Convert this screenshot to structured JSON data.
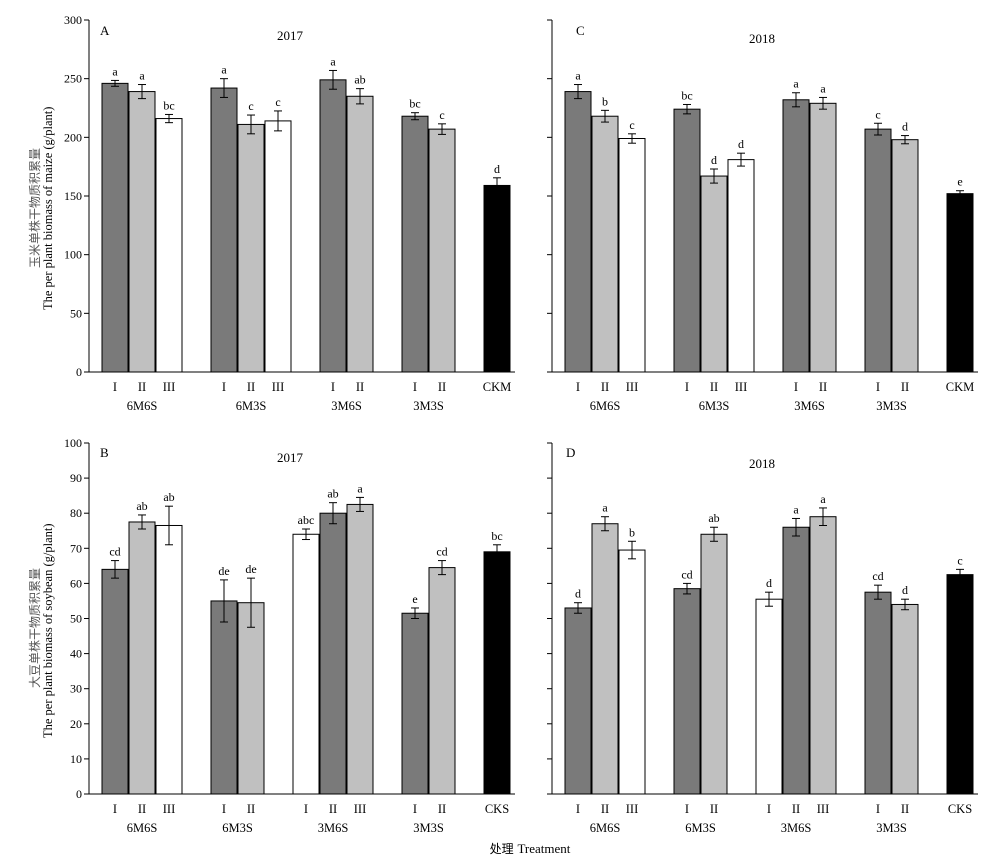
{
  "colors": {
    "I": "#7a7a7a",
    "II": "#c0c0c0",
    "III": "#ffffff",
    "CK": "#000000",
    "edge": "#000000"
  },
  "xaxis_title": {
    "cn": "处理",
    "en": "Treatment"
  },
  "ylabels": {
    "maize": {
      "cn": "玉米单株干物质积累量",
      "en": "The per plant biomass of maize (g/plant)"
    },
    "soybean": {
      "cn": "大豆单株干物质积累量",
      "en": "The per plant biomass of soybean (g/plant)"
    }
  },
  "chart_data": [
    {
      "panel": "A",
      "title": "2017",
      "type": "bar",
      "ylim": [
        0,
        300
      ],
      "yticks": [
        0,
        50,
        100,
        150,
        200,
        250,
        300
      ],
      "groups": [
        {
          "name": "6M6S",
          "bars": [
            {
              "cls": "I",
              "tick": "I",
              "value": 246,
              "err": 2.5,
              "letter": "a"
            },
            {
              "cls": "II",
              "tick": "II",
              "value": 239,
              "err": 6,
              "letter": "a"
            },
            {
              "cls": "III",
              "tick": "III",
              "value": 216,
              "err": 3.5,
              "letter": "bc"
            }
          ]
        },
        {
          "name": "6M3S",
          "bars": [
            {
              "cls": "I",
              "tick": "I",
              "value": 242,
              "err": 8,
              "letter": "a"
            },
            {
              "cls": "II",
              "tick": "II",
              "value": 211,
              "err": 8,
              "letter": "c"
            },
            {
              "cls": "III",
              "tick": "III",
              "value": 214,
              "err": 8.5,
              "letter": "c"
            }
          ]
        },
        {
          "name": "3M6S",
          "bars": [
            {
              "cls": "I",
              "tick": "I",
              "value": 249,
              "err": 8,
              "letter": "a"
            },
            {
              "cls": "II",
              "tick": "II",
              "value": 235,
              "err": 6.5,
              "letter": "ab"
            }
          ]
        },
        {
          "name": "3M3S",
          "bars": [
            {
              "cls": "I",
              "tick": "I",
              "value": 218,
              "err": 3,
              "letter": "bc"
            },
            {
              "cls": "II",
              "tick": "II",
              "value": 207,
              "err": 4.5,
              "letter": "c"
            }
          ]
        },
        {
          "name": "",
          "bars": [
            {
              "cls": "CK",
              "tick": "CKM",
              "value": 159,
              "err": 6.5,
              "letter": "d"
            }
          ]
        }
      ]
    },
    {
      "panel": "C",
      "title": "2018",
      "type": "bar",
      "ylim": [
        0,
        300
      ],
      "yticks": [],
      "groups": [
        {
          "name": "6M6S",
          "bars": [
            {
              "cls": "I",
              "tick": "I",
              "value": 239,
              "err": 6,
              "letter": "a"
            },
            {
              "cls": "II",
              "tick": "II",
              "value": 218,
              "err": 5,
              "letter": "b"
            },
            {
              "cls": "III",
              "tick": "III",
              "value": 199,
              "err": 4,
              "letter": "c"
            }
          ]
        },
        {
          "name": "6M3S",
          "bars": [
            {
              "cls": "I",
              "tick": "I",
              "value": 224,
              "err": 4,
              "letter": "bc"
            },
            {
              "cls": "II",
              "tick": "II",
              "value": 167,
              "err": 6,
              "letter": "d"
            },
            {
              "cls": "III",
              "tick": "III",
              "value": 181,
              "err": 5.5,
              "letter": "d"
            }
          ]
        },
        {
          "name": "3M6S",
          "bars": [
            {
              "cls": "I",
              "tick": "I",
              "value": 232,
              "err": 6,
              "letter": "a"
            },
            {
              "cls": "II",
              "tick": "II",
              "value": 229,
              "err": 5,
              "letter": "a"
            }
          ]
        },
        {
          "name": "3M3S",
          "bars": [
            {
              "cls": "I",
              "tick": "I",
              "value": 207,
              "err": 5,
              "letter": "c"
            },
            {
              "cls": "II",
              "tick": "II",
              "value": 198,
              "err": 3.5,
              "letter": "d"
            }
          ]
        },
        {
          "name": "",
          "bars": [
            {
              "cls": "CK",
              "tick": "CKM",
              "value": 152,
              "err": 2.5,
              "letter": "e"
            }
          ]
        }
      ]
    },
    {
      "panel": "B",
      "title": "2017",
      "type": "bar",
      "ylim": [
        0,
        100
      ],
      "yticks": [
        0,
        10,
        20,
        30,
        40,
        50,
        60,
        70,
        80,
        90,
        100
      ],
      "groups": [
        {
          "name": "6M6S",
          "bars": [
            {
              "cls": "I",
              "tick": "I",
              "value": 64,
              "err": 2.5,
              "letter": "cd"
            },
            {
              "cls": "II",
              "tick": "II",
              "value": 77.5,
              "err": 2,
              "letter": "ab"
            },
            {
              "cls": "III",
              "tick": "III",
              "value": 76.5,
              "err": 5.5,
              "letter": "ab"
            }
          ]
        },
        {
          "name": "6M3S",
          "bars": [
            {
              "cls": "I",
              "tick": "I",
              "value": 55,
              "err": 6,
              "letter": "de"
            },
            {
              "cls": "II",
              "tick": "II",
              "value": 54.5,
              "err": 7,
              "letter": "de"
            }
          ]
        },
        {
          "name": "3M6S",
          "bars": [
            {
              "cls": "III",
              "tick": "I",
              "value": 74,
              "err": 1.5,
              "letter": "abc"
            },
            {
              "cls": "I",
              "tick": "II",
              "value": 80,
              "err": 3,
              "letter": "ab"
            },
            {
              "cls": "II",
              "tick": "III",
              "value": 82.5,
              "err": 2,
              "letter": "a"
            }
          ]
        },
        {
          "name": "3M3S",
          "bars": [
            {
              "cls": "I",
              "tick": "I",
              "value": 51.5,
              "err": 1.5,
              "letter": "e"
            },
            {
              "cls": "II",
              "tick": "II",
              "value": 64.5,
              "err": 2,
              "letter": "cd"
            }
          ]
        },
        {
          "name": "",
          "bars": [
            {
              "cls": "CK",
              "tick": "CKS",
              "value": 69,
              "err": 2,
              "letter": "bc"
            }
          ]
        }
      ]
    },
    {
      "panel": "D",
      "title": "2018",
      "type": "bar",
      "ylim": [
        0,
        100
      ],
      "yticks": [],
      "groups": [
        {
          "name": "6M6S",
          "bars": [
            {
              "cls": "I",
              "tick": "I",
              "value": 53,
              "err": 1.5,
              "letter": "d"
            },
            {
              "cls": "II",
              "tick": "II",
              "value": 77,
              "err": 2,
              "letter": "a"
            },
            {
              "cls": "III",
              "tick": "III",
              "value": 69.5,
              "err": 2.5,
              "letter": "b"
            }
          ]
        },
        {
          "name": "6M3S",
          "bars": [
            {
              "cls": "I",
              "tick": "I",
              "value": 58.5,
              "err": 1.5,
              "letter": "cd"
            },
            {
              "cls": "II",
              "tick": "II",
              "value": 74,
              "err": 2,
              "letter": "ab"
            }
          ]
        },
        {
          "name": "3M6S",
          "bars": [
            {
              "cls": "III",
              "tick": "I",
              "value": 55.5,
              "err": 2,
              "letter": "d"
            },
            {
              "cls": "I",
              "tick": "II",
              "value": 76,
              "err": 2.5,
              "letter": "a"
            },
            {
              "cls": "II",
              "tick": "III",
              "value": 79,
              "err": 2.5,
              "letter": "a"
            }
          ]
        },
        {
          "name": "3M3S",
          "bars": [
            {
              "cls": "I",
              "tick": "I",
              "value": 57.5,
              "err": 2,
              "letter": "cd"
            },
            {
              "cls": "II",
              "tick": "II",
              "value": 54,
              "err": 1.5,
              "letter": "d"
            }
          ]
        },
        {
          "name": "",
          "bars": [
            {
              "cls": "CK",
              "tick": "CKS",
              "value": 62.5,
              "err": 1.5,
              "letter": "c"
            }
          ]
        }
      ]
    }
  ]
}
